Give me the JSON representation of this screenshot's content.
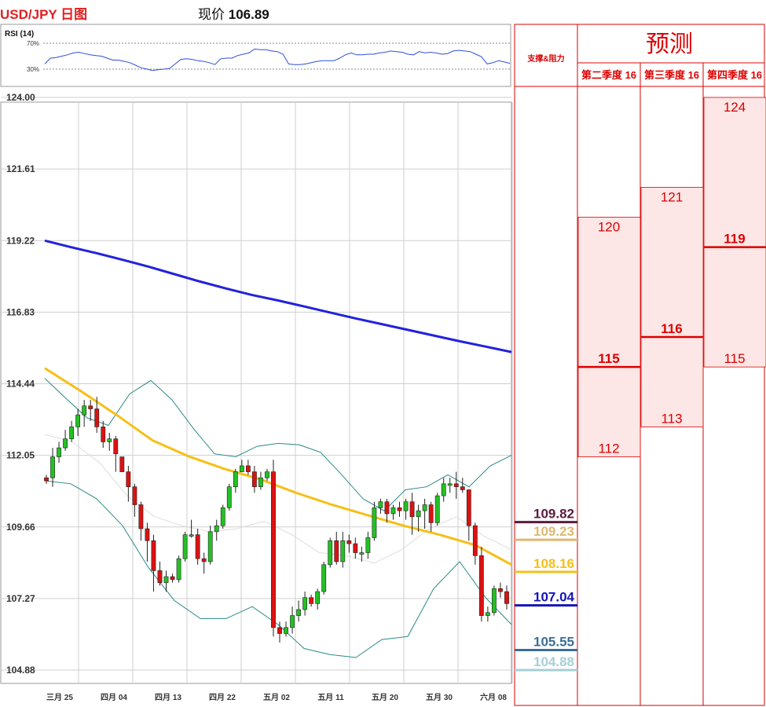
{
  "header": {
    "title": "USD/JPY 日图",
    "price_label": "现价",
    "price_value": "106.89"
  },
  "rsi": {
    "label": "RSI (14)",
    "levels": [
      "70%",
      "30%"
    ],
    "level_values": [
      70,
      30
    ],
    "values": [
      38,
      47,
      48,
      50,
      52,
      55,
      56,
      54,
      52,
      51,
      50,
      47,
      44,
      44,
      42,
      40,
      36,
      32,
      30,
      28,
      29,
      30,
      31,
      38,
      45,
      46,
      45,
      43,
      42,
      40,
      37,
      46,
      47,
      47,
      51,
      53,
      55,
      61,
      60,
      60,
      58,
      57,
      53,
      38,
      37,
      37,
      38,
      40,
      42,
      43,
      43,
      43,
      47,
      52,
      55,
      52,
      52,
      53,
      53,
      55,
      56,
      58,
      57,
      56,
      53,
      52,
      57,
      55,
      56,
      55,
      53,
      54,
      58,
      59,
      58,
      57,
      53,
      49,
      38,
      40,
      43,
      41,
      39
    ]
  },
  "chart_data": {
    "type": "candlestick",
    "ylim": [
      104.0,
      124.4
    ],
    "y_ticks": [
      "124.00",
      "121.61",
      "119.22",
      "116.83",
      "114.44",
      "112.05",
      "109.66",
      "107.27",
      "104.88"
    ],
    "y_tick_values": [
      124.0,
      121.61,
      119.22,
      116.83,
      114.44,
      112.05,
      109.66,
      107.27,
      104.88
    ],
    "x_ticks": [
      "三月 25",
      "四月 04",
      "四月 13",
      "四月 22",
      "五月 02",
      "五月 11",
      "五月 20",
      "五月 30",
      "六月 08"
    ],
    "x_tick_index": [
      1,
      6,
      11,
      16,
      21,
      26,
      31,
      36,
      41
    ],
    "candles": [
      [
        111.3,
        111.2,
        111.4,
        111.1
      ],
      [
        111.3,
        112.0,
        112.3,
        111.0
      ],
      [
        112.0,
        112.3,
        112.5,
        111.8
      ],
      [
        112.3,
        112.6,
        112.9,
        112.2
      ],
      [
        112.6,
        113.0,
        113.2,
        112.5
      ],
      [
        113.0,
        113.4,
        113.6,
        112.7
      ],
      [
        113.4,
        113.7,
        113.9,
        113.0
      ],
      [
        113.7,
        113.6,
        113.9,
        113.2
      ],
      [
        113.6,
        113.0,
        114.0,
        112.8
      ],
      [
        113.0,
        112.5,
        113.2,
        112.3
      ],
      [
        112.5,
        112.6,
        112.8,
        112.2
      ],
      [
        112.6,
        112.1,
        112.7,
        111.5
      ],
      [
        112.0,
        111.5,
        112.0,
        111.5
      ],
      [
        111.5,
        111.0,
        111.7,
        110.5
      ],
      [
        111.0,
        110.4,
        111.1,
        110.0
      ],
      [
        110.4,
        109.6,
        110.5,
        109.2
      ],
      [
        109.6,
        109.2,
        109.8,
        108.5
      ],
      [
        109.2,
        108.2,
        109.4,
        107.5
      ],
      [
        108.2,
        107.8,
        108.5,
        107.7
      ],
      [
        107.8,
        108.0,
        108.2,
        107.5
      ],
      [
        108.0,
        107.9,
        108.1,
        107.8
      ],
      [
        107.9,
        108.6,
        108.7,
        107.8
      ],
      [
        108.6,
        109.4,
        109.5,
        108.5
      ],
      [
        109.4,
        109.4,
        109.9,
        109.3
      ],
      [
        109.4,
        108.6,
        109.6,
        108.4
      ],
      [
        108.6,
        108.5,
        108.8,
        108.1
      ],
      [
        108.5,
        109.5,
        109.7,
        108.4
      ],
      [
        109.5,
        109.7,
        109.9,
        109.2
      ],
      [
        109.7,
        110.3,
        110.4,
        109.6
      ],
      [
        110.3,
        111.0,
        111.1,
        110.2
      ],
      [
        111.0,
        111.5,
        111.6,
        110.8
      ],
      [
        111.5,
        111.7,
        111.9,
        111.6
      ],
      [
        111.7,
        111.5,
        111.9,
        111.4
      ],
      [
        111.5,
        111.0,
        111.7,
        110.8
      ],
      [
        111.0,
        111.3,
        111.5,
        110.9
      ],
      [
        111.3,
        111.5,
        111.6,
        111.2
      ],
      [
        111.5,
        106.3,
        111.9,
        106.0
      ],
      [
        106.3,
        106.1,
        106.5,
        105.8
      ],
      [
        106.1,
        106.3,
        106.5,
        106.0
      ],
      [
        106.3,
        106.7,
        107.0,
        106.1
      ],
      [
        106.7,
        106.9,
        107.2,
        106.5
      ],
      [
        106.9,
        107.3,
        107.5,
        106.7
      ],
      [
        107.3,
        107.1,
        107.4,
        107.0
      ],
      [
        107.1,
        107.5,
        107.6,
        106.9
      ],
      [
        107.5,
        108.4,
        108.5,
        107.4
      ],
      [
        108.4,
        109.2,
        109.3,
        108.3
      ],
      [
        109.2,
        108.5,
        109.5,
        108.4
      ],
      [
        108.5,
        109.2,
        109.5,
        108.3
      ],
      [
        109.2,
        109.1,
        109.4,
        108.8
      ],
      [
        109.1,
        108.8,
        109.3,
        108.6
      ],
      [
        108.8,
        108.8,
        109.0,
        108.5
      ],
      [
        108.8,
        109.3,
        109.5,
        108.6
      ],
      [
        109.3,
        110.3,
        110.5,
        109.2
      ],
      [
        110.3,
        110.5,
        110.6,
        110.1
      ],
      [
        110.5,
        110.1,
        110.6,
        109.8
      ],
      [
        110.1,
        110.3,
        110.4,
        109.9
      ],
      [
        110.3,
        110.2,
        110.5,
        110.0
      ],
      [
        110.2,
        110.5,
        110.6,
        109.9
      ],
      [
        110.5,
        110.0,
        110.8,
        109.4
      ],
      [
        110.0,
        110.2,
        110.4,
        109.5
      ],
      [
        110.2,
        110.4,
        110.6,
        109.6
      ],
      [
        110.4,
        109.8,
        110.5,
        109.5
      ],
      [
        109.8,
        110.7,
        110.8,
        109.7
      ],
      [
        110.7,
        111.1,
        111.3,
        110.5
      ],
      [
        111.1,
        111.1,
        111.3,
        110.8
      ],
      [
        111.1,
        111.0,
        111.5,
        110.6
      ],
      [
        111.0,
        110.9,
        111.3,
        110.8
      ],
      [
        110.9,
        109.7,
        110.9,
        109.2
      ],
      [
        109.7,
        108.7,
        109.8,
        108.4
      ],
      [
        108.7,
        106.7,
        109.0,
        106.5
      ],
      [
        106.7,
        106.8,
        107.0,
        106.5
      ],
      [
        106.8,
        107.6,
        107.7,
        106.7
      ],
      [
        107.6,
        107.5,
        107.8,
        107.3
      ],
      [
        107.5,
        107.1,
        107.7,
        106.9
      ]
    ],
    "ma200": [
      119.22,
      119.0,
      118.8,
      118.58,
      118.35,
      118.1,
      117.85,
      117.62,
      117.4,
      117.22,
      117.02,
      116.82,
      116.62,
      116.43,
      116.24,
      116.05,
      115.86,
      115.68,
      115.5
    ],
    "ma50": [
      114.96,
      114.2,
      113.4,
      112.55,
      112.02,
      111.6,
      111.25,
      110.8,
      110.4,
      110.05,
      109.7,
      109.4,
      109.05,
      108.4
    ],
    "bb_upper": [
      114.62,
      113.95,
      113.3,
      113.05,
      114.1,
      114.55,
      113.9,
      112.95,
      112.1,
      112.0,
      112.35,
      112.45,
      112.4,
      112.15,
      111.4,
      110.6,
      110.2,
      110.9,
      111.0,
      111.4,
      111.0,
      111.7,
      112.05
    ],
    "bb_lower": [
      111.2,
      111.1,
      110.6,
      109.7,
      108.3,
      107.2,
      106.6,
      106.6,
      107.0,
      106.4,
      105.6,
      105.4,
      105.3,
      105.9,
      106.0,
      107.6,
      108.5,
      107.3,
      106.4
    ],
    "bb_middle": [
      112.75,
      112.5,
      111.8,
      110.7,
      110.0,
      109.7,
      109.5,
      109.6,
      109.85,
      109.4,
      108.8,
      108.7,
      108.45,
      108.9,
      109.6,
      110.0,
      109.35,
      108.9
    ]
  },
  "support_resistance": {
    "header": "支撑&阻力",
    "levels": [
      {
        "value": "109.82",
        "color": "#5c1a3c"
      },
      {
        "value": "109.23",
        "color": "#e0b870"
      },
      {
        "value": "108.16",
        "color": "#f6bf1a"
      },
      {
        "value": "107.04",
        "color": "#1414b8"
      },
      {
        "value": "105.55",
        "color": "#3a6f96"
      },
      {
        "value": "104.88",
        "color": "#a6cfd6"
      }
    ]
  },
  "forecast": {
    "title": "预测",
    "columns": [
      {
        "label": "第二季度 16",
        "high": "120",
        "mid": "115",
        "low": "112"
      },
      {
        "label": "第三季度 16",
        "high": "121",
        "mid": "116",
        "low": "113"
      },
      {
        "label": "第四季度 16",
        "high": "124",
        "mid": "119",
        "low": "115"
      }
    ]
  },
  "colors": {
    "up": "#23c123",
    "down": "#dd1111",
    "ma200": "#2222dd",
    "ma50": "#f7bf17",
    "bollinger": "#2a8a86",
    "forecast_red": "#dd0000",
    "forecast_fill": "#fde6e6"
  }
}
